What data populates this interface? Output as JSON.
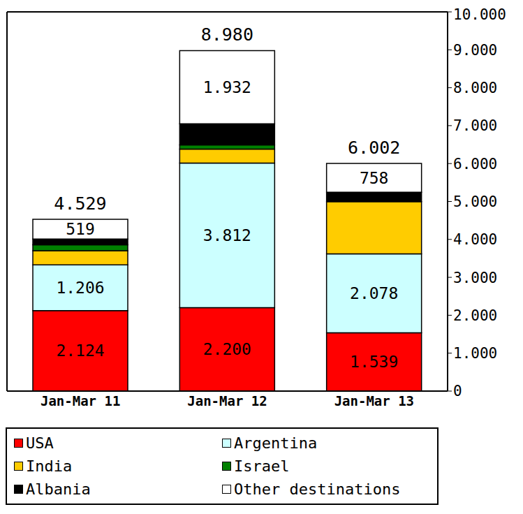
{
  "chart_data": {
    "type": "bar",
    "stacked": true,
    "data_labels": true,
    "legend": "bottom",
    "grid": false,
    "categories": [
      "Jan-Mar 11",
      "Jan-Mar 12",
      "Jan-Mar 13"
    ],
    "series": [
      {
        "name": "USA",
        "color": "#ff0000",
        "values": [
          2124,
          2200,
          1539
        ],
        "value_labels": [
          "2.124",
          "2.200",
          "1.539"
        ]
      },
      {
        "name": "Argentina",
        "color": "#ccffff",
        "values": [
          1206,
          3812,
          2078
        ],
        "value_labels": [
          "1.206",
          "3.812",
          "2.078"
        ]
      },
      {
        "name": "India",
        "color": "#ffcc00",
        "values": [
          370,
          370,
          1380
        ]
      },
      {
        "name": "Israel",
        "color": "#008000",
        "values": [
          160,
          110,
          0
        ]
      },
      {
        "name": "Albania",
        "color": "#000000",
        "values": [
          150,
          556,
          247
        ]
      },
      {
        "name": "Other destinations",
        "color": "#ffffff",
        "values": [
          519,
          1932,
          758
        ],
        "value_labels": [
          "519",
          "1.932",
          "758"
        ]
      }
    ],
    "totals": [
      4529,
      8980,
      6002
    ],
    "total_labels": [
      "4.529",
      "8.980",
      "6.002"
    ],
    "ylim": [
      0,
      10000
    ],
    "yticks": [
      0,
      {
        "value": 1000,
        "label": "1.000"
      },
      {
        "value": 2000,
        "label": "2.000"
      },
      {
        "value": 3000,
        "label": "3.000"
      },
      {
        "value": 4000,
        "label": "4.000"
      },
      {
        "value": 5000,
        "label": "5.000"
      },
      {
        "value": 6000,
        "label": "6.000"
      },
      {
        "value": 7000,
        "label": "7.000"
      },
      {
        "value": 8000,
        "label": "8.000"
      },
      {
        "value": 9000,
        "label": "9.000"
      },
      {
        "value": 10000,
        "label": "10.000"
      }
    ]
  }
}
